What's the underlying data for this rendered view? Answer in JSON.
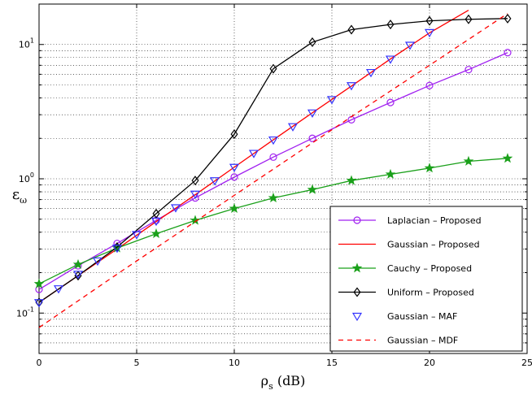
{
  "chart_data": {
    "type": "line",
    "title": "",
    "xlabel_main": "ρ",
    "xlabel_sub": "s",
    "xlabel_unit": " (dB)",
    "ylabel_main": "ε",
    "ylabel_sub": "ω",
    "xlim": [
      0,
      25
    ],
    "ylim": [
      0.05,
      20
    ],
    "yscale": "log",
    "grid": true,
    "x_ticks": [
      0,
      5,
      10,
      15,
      20,
      25
    ],
    "y_ticks": [
      {
        "value": 0.1,
        "base": "10",
        "exp": "-1"
      },
      {
        "value": 1,
        "base": "10",
        "exp": "0"
      },
      {
        "value": 10,
        "base": "10",
        "exp": "1"
      }
    ],
    "legend_position": "bottom-right",
    "series": [
      {
        "name": "Laplacian – Proposed",
        "color": "#a020f0",
        "line": "solid",
        "marker": "circle",
        "x": [
          0,
          2,
          4,
          6,
          8,
          10,
          12,
          14,
          16,
          18,
          20,
          22,
          24
        ],
        "y": [
          0.15,
          0.225,
          0.33,
          0.49,
          0.72,
          1.03,
          1.45,
          2.0,
          2.75,
          3.7,
          4.95,
          6.5,
          8.7
        ]
      },
      {
        "name": "Gaussian – Proposed",
        "color": "#ff0000",
        "line": "solid",
        "marker": "none",
        "x": [
          0,
          2,
          4,
          6,
          8,
          10,
          12,
          14,
          16,
          18,
          20,
          22
        ],
        "y": [
          0.12,
          0.19,
          0.3,
          0.48,
          0.76,
          1.22,
          1.95,
          3.1,
          4.9,
          7.8,
          12.2,
          18.0
        ]
      },
      {
        "name": "Cauchy – Proposed",
        "color": "#1aa01a",
        "line": "solid",
        "marker": "star",
        "x": [
          0,
          2,
          4,
          6,
          8,
          10,
          12,
          14,
          16,
          18,
          20,
          22,
          24
        ],
        "y": [
          0.165,
          0.23,
          0.305,
          0.39,
          0.49,
          0.6,
          0.72,
          0.83,
          0.97,
          1.08,
          1.2,
          1.35,
          1.42
        ]
      },
      {
        "name": "Uniform – Proposed",
        "color": "#000000",
        "line": "solid",
        "marker": "diamond",
        "x": [
          0,
          2,
          4,
          6,
          8,
          10,
          12,
          14,
          16,
          18,
          20,
          22,
          24
        ],
        "y": [
          0.12,
          0.19,
          0.31,
          0.55,
          0.97,
          2.15,
          6.6,
          10.4,
          12.9,
          14.1,
          15.0,
          15.4,
          15.6
        ]
      },
      {
        "name": "Gaussian – MAF",
        "color": "#3333ff",
        "line": "none",
        "marker": "triangle-down",
        "x": [
          0,
          1,
          2,
          3,
          4,
          5,
          6,
          7,
          8,
          9,
          10,
          11,
          12,
          13,
          14,
          15,
          16,
          17,
          18,
          19,
          20
        ],
        "y": [
          0.12,
          0.152,
          0.195,
          0.245,
          0.305,
          0.385,
          0.485,
          0.61,
          0.77,
          0.97,
          1.22,
          1.55,
          1.95,
          2.45,
          3.1,
          3.9,
          4.95,
          6.2,
          7.8,
          9.9,
          12.3
        ]
      },
      {
        "name": "Gaussian – MDF",
        "color": "#ff0000",
        "line": "dashed",
        "marker": "none",
        "x": [
          0,
          4,
          8,
          12,
          16,
          20,
          24
        ],
        "y": [
          0.078,
          0.195,
          0.48,
          1.18,
          2.9,
          7.0,
          17.0
        ]
      }
    ]
  }
}
